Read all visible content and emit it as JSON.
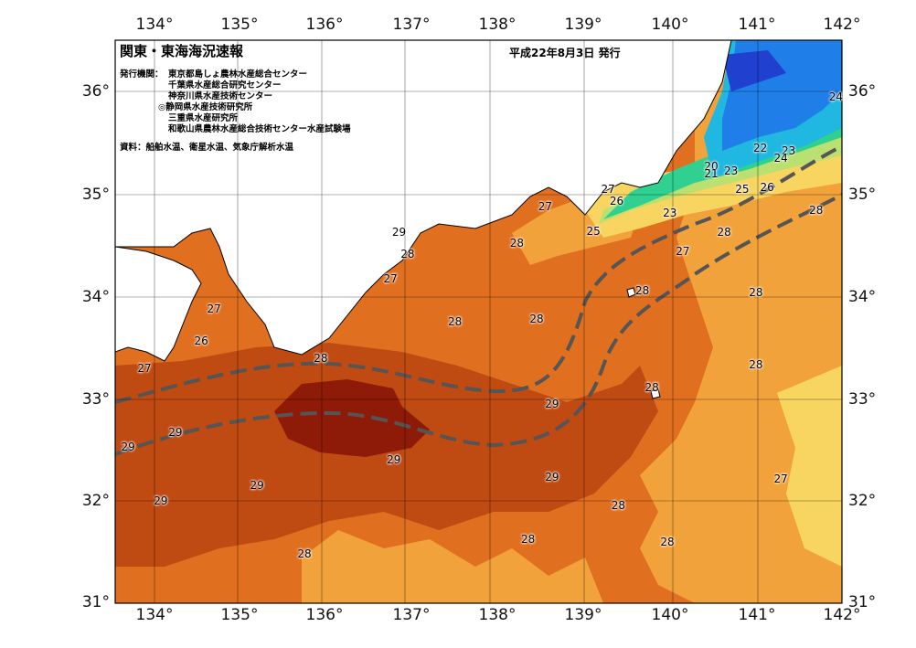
{
  "title": "関東・東海海況速報",
  "issue_date": "平成22年8月3日 発行",
  "institutions": {
    "label": "発行機関：",
    "items": [
      "東京都島しょ農林水産総合センター",
      "千葉県水産総合研究センター",
      "神奈川県水産技術センター",
      "◎静岡県水産技術研究所",
      "三重県水産研究所",
      "和歌山県農林水産総合技術センター水産試験場"
    ]
  },
  "sources": "資料：船舶水温、衛星水温、気象庁解析水温",
  "axes": {
    "lon_ticks": [
      "134°",
      "135°",
      "136°",
      "137°",
      "138°",
      "139°",
      "140°",
      "141°",
      "142°"
    ],
    "lat_ticks": [
      "36°",
      "35°",
      "34°",
      "33°",
      "32°",
      "31°"
    ],
    "lon_values": [
      134,
      135,
      136,
      137,
      138,
      139,
      140,
      141,
      142
    ],
    "lat_values": [
      36,
      35,
      34,
      33,
      32,
      31
    ],
    "lon_range": [
      133.55,
      142.0
    ],
    "lat_range": [
      31.0,
      36.75
    ]
  },
  "colors": {
    "land": "#ffffff",
    "coast": "#000000",
    "kuroshio_axis": "#555555",
    "t29_plus": "#8e1a08",
    "t29": "#bf4a12",
    "t28": "#e07020",
    "t27": "#f2a23a",
    "t26": "#f8d560",
    "t25": "#b9e070",
    "t24": "#30d090",
    "t23": "#20b8e0",
    "t22": "#1f7ee8",
    "t21": "#2040d0"
  },
  "contour_labels": [
    {
      "text": "24",
      "lon": 141.93,
      "lat": 36.17
    },
    {
      "text": "22",
      "lon": 141.05,
      "lat": 35.65
    },
    {
      "text": "23",
      "lon": 141.38,
      "lat": 35.62
    },
    {
      "text": "24",
      "lon": 141.29,
      "lat": 35.55
    },
    {
      "text": "20",
      "lon": 140.48,
      "lat": 35.46
    },
    {
      "text": "21",
      "lon": 140.48,
      "lat": 35.39
    },
    {
      "text": "23",
      "lon": 140.71,
      "lat": 35.42
    },
    {
      "text": "25",
      "lon": 140.84,
      "lat": 35.23
    },
    {
      "text": "26",
      "lon": 141.13,
      "lat": 35.25
    },
    {
      "text": "27",
      "lon": 139.28,
      "lat": 35.23
    },
    {
      "text": "26",
      "lon": 139.38,
      "lat": 35.11
    },
    {
      "text": "23",
      "lon": 140.0,
      "lat": 34.99
    },
    {
      "text": "27",
      "lon": 138.55,
      "lat": 35.05
    },
    {
      "text": "25",
      "lon": 139.11,
      "lat": 34.8
    },
    {
      "text": "28",
      "lon": 141.7,
      "lat": 35.01
    },
    {
      "text": "28",
      "lon": 140.63,
      "lat": 34.79
    },
    {
      "text": "27",
      "lon": 140.15,
      "lat": 34.59
    },
    {
      "text": "29",
      "lon": 136.85,
      "lat": 34.79
    },
    {
      "text": "28",
      "lon": 136.95,
      "lat": 34.57
    },
    {
      "text": "28",
      "lon": 138.22,
      "lat": 34.68
    },
    {
      "text": "27",
      "lon": 136.75,
      "lat": 34.31
    },
    {
      "text": "27",
      "lon": 134.7,
      "lat": 34.01
    },
    {
      "text": "28",
      "lon": 139.68,
      "lat": 34.19
    },
    {
      "text": "28",
      "lon": 141.0,
      "lat": 34.17
    },
    {
      "text": "28",
      "lon": 137.5,
      "lat": 33.88
    },
    {
      "text": "28",
      "lon": 138.45,
      "lat": 33.9
    },
    {
      "text": "26",
      "lon": 134.55,
      "lat": 33.68
    },
    {
      "text": "28",
      "lon": 135.94,
      "lat": 33.5
    },
    {
      "text": "27",
      "lon": 133.89,
      "lat": 33.4
    },
    {
      "text": "28",
      "lon": 141.0,
      "lat": 33.44
    },
    {
      "text": "28",
      "lon": 139.79,
      "lat": 33.2
    },
    {
      "text": "29",
      "lon": 138.63,
      "lat": 33.04
    },
    {
      "text": "29",
      "lon": 133.7,
      "lat": 32.6
    },
    {
      "text": "29",
      "lon": 134.25,
      "lat": 32.75
    },
    {
      "text": "29",
      "lon": 136.79,
      "lat": 32.47
    },
    {
      "text": "29",
      "lon": 138.63,
      "lat": 32.29
    },
    {
      "text": "27",
      "lon": 141.29,
      "lat": 32.27
    },
    {
      "text": "29",
      "lon": 135.2,
      "lat": 32.2
    },
    {
      "text": "29",
      "lon": 134.08,
      "lat": 32.05
    },
    {
      "text": "28",
      "lon": 139.4,
      "lat": 32.0
    },
    {
      "text": "28",
      "lon": 138.35,
      "lat": 31.65
    },
    {
      "text": "28",
      "lon": 139.97,
      "lat": 31.63
    },
    {
      "text": "28",
      "lon": 135.75,
      "lat": 31.5
    }
  ]
}
